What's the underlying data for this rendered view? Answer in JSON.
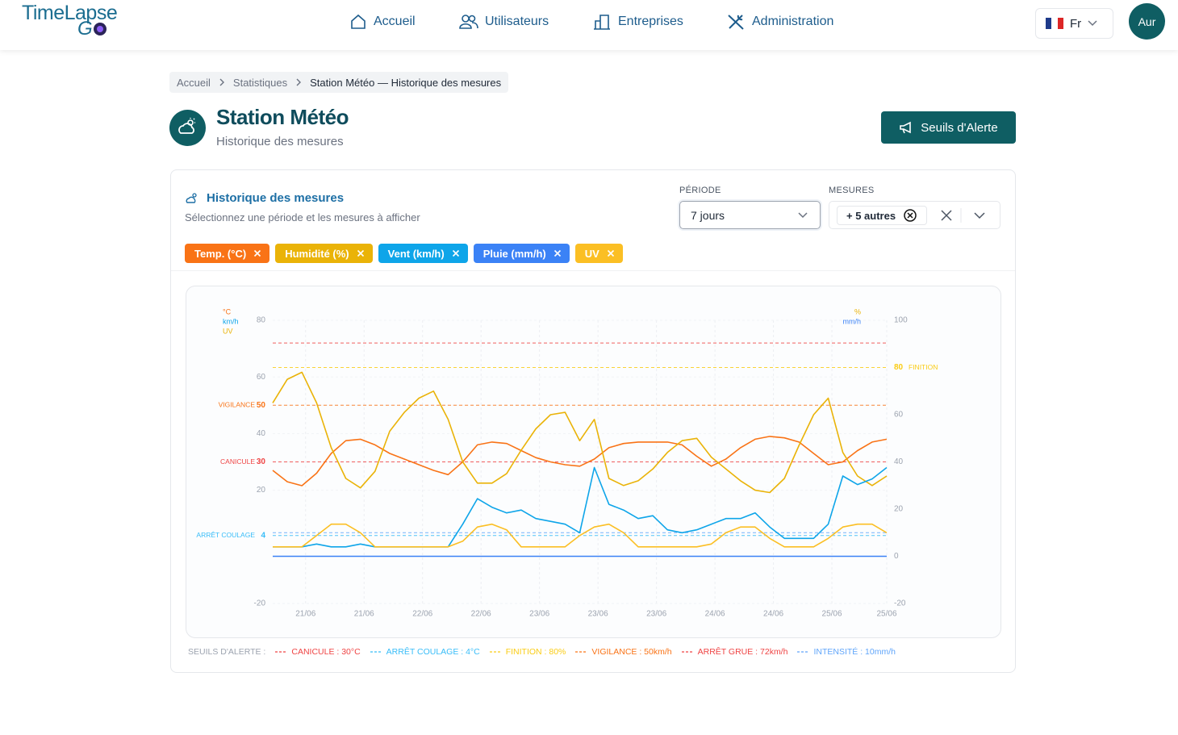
{
  "header": {
    "logo_top": "TimeLapse",
    "logo_bottom": "G",
    "nav": [
      "Accueil",
      "Utilisateurs",
      "Entreprises",
      "Administration"
    ],
    "language": "Fr",
    "avatar": "Aur"
  },
  "breadcrumb": [
    "Accueil",
    "Statistiques",
    "Station Météo — Historique des mesures"
  ],
  "page": {
    "title": "Station Météo",
    "subtitle": "Historique des mesures",
    "button": "Seuils d'Alerte"
  },
  "card": {
    "title": "Historique des mesures",
    "subtitle": "Sélectionnez une période et les mesures à afficher",
    "period_label": "PÉRIODE",
    "period_value": "7 jours",
    "measures_label": "MESURES",
    "measures_value": "+ 5 autres"
  },
  "chart_data": {
    "type": "line",
    "x": [
      0,
      4,
      8,
      12,
      16,
      20,
      24,
      28,
      32,
      36,
      40,
      44,
      48,
      52,
      56,
      60,
      64,
      68,
      72,
      76,
      80,
      84,
      88,
      92,
      96,
      100,
      104,
      108,
      112,
      116,
      120,
      124,
      128,
      132,
      136,
      140,
      144,
      148,
      152,
      156,
      160,
      164,
      168
    ],
    "xlim": [
      0,
      168
    ],
    "xticks": [
      {
        "value": 9,
        "label": "21/06"
      },
      {
        "value": 25,
        "label": "21/06"
      },
      {
        "value": 41,
        "label": "22/06"
      },
      {
        "value": 57,
        "label": "22/06"
      },
      {
        "value": 73,
        "label": "23/06"
      },
      {
        "value": 89,
        "label": "23/06"
      },
      {
        "value": 105,
        "label": "23/06"
      },
      {
        "value": 121,
        "label": "24/06"
      },
      {
        "value": 137,
        "label": "24/06"
      },
      {
        "value": 153,
        "label": "25/06"
      },
      {
        "value": 168,
        "label": "25/06"
      }
    ],
    "ylim": [
      -20,
      80
    ],
    "yticks": [
      -20,
      4,
      20,
      30,
      40,
      50,
      60,
      80
    ],
    "y2lim": [
      -20,
      100
    ],
    "y2ticks": [
      -20,
      0,
      20,
      40,
      60,
      80,
      100
    ],
    "grid": true,
    "y_units": [
      {
        "text": "°C",
        "color": "#f97316"
      },
      {
        "text": "km/h",
        "color": "#0ea5e9"
      },
      {
        "text": "UV",
        "color": "#eab308"
      }
    ],
    "y2_units": [
      {
        "text": "%",
        "color": "#eab308"
      },
      {
        "text": "mm/h",
        "color": "#3b82f6"
      }
    ],
    "series": [
      {
        "name": "Temp. (°C)",
        "color": "#f97316",
        "values": [
          27,
          23,
          21.6,
          26,
          33,
          37.5,
          38,
          36,
          33,
          31,
          29,
          27,
          25.5,
          30,
          36,
          37,
          36.5,
          34,
          31.5,
          30,
          29,
          28.5,
          31,
          35,
          36.5,
          37,
          37,
          37,
          36,
          32,
          28.5,
          31,
          35,
          38,
          39,
          38.5,
          37,
          33,
          29,
          30,
          34,
          37,
          38
        ]
      },
      {
        "name": "Humidité (%)",
        "color": "#eab308",
        "axis": "y2",
        "values": [
          65,
          75,
          78,
          65,
          46,
          33,
          29,
          36,
          53,
          61,
          67,
          70,
          58,
          40,
          31,
          31,
          35,
          45,
          54,
          60,
          61,
          49,
          58,
          33,
          30,
          32,
          37,
          44,
          49,
          50,
          42,
          37,
          32,
          28,
          27,
          33,
          47,
          60,
          67,
          44,
          34,
          30,
          34
        ]
      },
      {
        "name": "Vent (km/h)",
        "color": "#0ea5e9",
        "values": [
          0,
          0,
          0,
          1,
          0,
          0,
          1,
          0,
          0,
          0,
          0,
          0,
          0,
          8,
          17,
          14,
          12,
          13,
          10,
          9,
          8,
          5,
          28,
          15,
          13,
          10,
          11,
          6,
          5,
          6,
          8,
          10,
          10,
          12,
          7,
          3,
          3,
          3,
          8,
          25,
          22,
          24,
          28
        ]
      },
      {
        "name": "Pluie (mm/h)",
        "color": "#3b82f6",
        "axis": "y2",
        "values": [
          0,
          0,
          0,
          0,
          0,
          0,
          0,
          0,
          0,
          0,
          0,
          0,
          0,
          0,
          0,
          0,
          0,
          0,
          0,
          0,
          0,
          0,
          0,
          0,
          0,
          0,
          0,
          0,
          0,
          0,
          0,
          0,
          0,
          0,
          0,
          0,
          0,
          0,
          0,
          0,
          0,
          0,
          0
        ]
      },
      {
        "name": "UV",
        "color": "#fbbf24",
        "values": [
          0,
          0,
          0,
          4,
          8,
          8,
          5,
          0,
          0,
          0,
          0,
          0,
          0,
          2,
          7,
          8,
          6,
          0,
          0,
          0,
          0,
          4,
          7,
          8,
          5,
          0,
          0,
          0,
          0,
          0,
          1,
          5,
          7,
          7,
          3,
          0,
          0,
          0,
          3,
          7,
          8,
          8,
          5
        ]
      }
    ],
    "thresholds_title": "SEUILS D'ALERTE :",
    "thresholds": [
      {
        "value": 30,
        "color": "#ef4444",
        "axis_label": "CANICULE",
        "legend": "CANICULE : 30°C"
      },
      {
        "value": 4,
        "color": "#38bdf8",
        "axis_label": "ARRÊT COULAGE",
        "legend": "ARRÊT COULAGE : 4°C"
      },
      {
        "value": 80,
        "color": "#facc15",
        "axis": "y2",
        "axis_label": "FINITION",
        "legend": "FINITION : 80%"
      },
      {
        "value": 50,
        "color": "#f97316",
        "axis_label": "VIGILANCE",
        "legend": "VIGILANCE : 50km/h"
      },
      {
        "value": 72,
        "color": "#ef4444",
        "legend": "ARRÊT GRUE : 72km/h"
      },
      {
        "value": 10,
        "color": "#60a5fa",
        "axis": "y2",
        "legend": "INTENSITÉ : 10mm/h"
      }
    ]
  }
}
